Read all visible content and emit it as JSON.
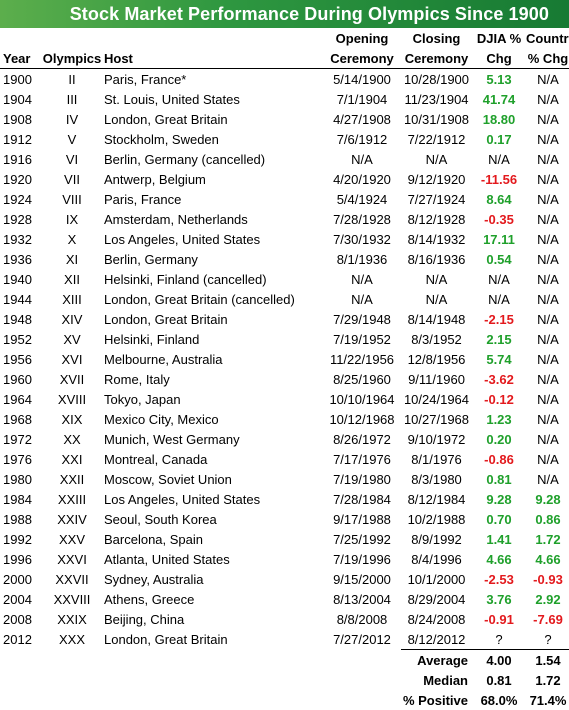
{
  "chart_data": {
    "type": "table",
    "title": "Stock Market Performance During Olympics Since 1900",
    "headers": {
      "row1": [
        "",
        "",
        "",
        "Opening",
        "Closing",
        "DJIA %",
        "Country"
      ],
      "row2": [
        "Year",
        "Olympics",
        "Host",
        "Ceremony",
        "Ceremony",
        "Chg",
        "% Chg"
      ]
    },
    "rows": [
      {
        "year": "1900",
        "olympics": "II",
        "host": "Paris, France*",
        "opening": "5/14/1900",
        "closing": "10/28/1900",
        "djia": "5.13",
        "country": "N/A"
      },
      {
        "year": "1904",
        "olympics": "III",
        "host": "St. Louis, United States",
        "opening": "7/1/1904",
        "closing": "11/23/1904",
        "djia": "41.74",
        "country": "N/A"
      },
      {
        "year": "1908",
        "olympics": "IV",
        "host": "London, Great Britain",
        "opening": "4/27/1908",
        "closing": "10/31/1908",
        "djia": "18.80",
        "country": "N/A"
      },
      {
        "year": "1912",
        "olympics": "V",
        "host": "Stockholm, Sweden",
        "opening": "7/6/1912",
        "closing": "7/22/1912",
        "djia": "0.17",
        "country": "N/A"
      },
      {
        "year": "1916",
        "olympics": "VI",
        "host": "Berlin, Germany (cancelled)",
        "opening": "N/A",
        "closing": "N/A",
        "djia": "N/A",
        "country": "N/A"
      },
      {
        "year": "1920",
        "olympics": "VII",
        "host": "Antwerp, Belgium",
        "opening": "4/20/1920",
        "closing": "9/12/1920",
        "djia": "-11.56",
        "country": "N/A"
      },
      {
        "year": "1924",
        "olympics": "VIII",
        "host": "Paris, France",
        "opening": "5/4/1924",
        "closing": "7/27/1924",
        "djia": "8.64",
        "country": "N/A"
      },
      {
        "year": "1928",
        "olympics": "IX",
        "host": "Amsterdam, Netherlands",
        "opening": "7/28/1928",
        "closing": "8/12/1928",
        "djia": "-0.35",
        "country": "N/A"
      },
      {
        "year": "1932",
        "olympics": "X",
        "host": "Los Angeles, United States",
        "opening": "7/30/1932",
        "closing": "8/14/1932",
        "djia": "17.11",
        "country": "N/A"
      },
      {
        "year": "1936",
        "olympics": "XI",
        "host": "Berlin, Germany",
        "opening": "8/1/1936",
        "closing": "8/16/1936",
        "djia": "0.54",
        "country": "N/A"
      },
      {
        "year": "1940",
        "olympics": "XII",
        "host": "Helsinki, Finland (cancelled)",
        "opening": "N/A",
        "closing": "N/A",
        "djia": "N/A",
        "country": "N/A"
      },
      {
        "year": "1944",
        "olympics": "XIII",
        "host": "London, Great Britain (cancelled)",
        "opening": "N/A",
        "closing": "N/A",
        "djia": "N/A",
        "country": "N/A"
      },
      {
        "year": "1948",
        "olympics": "XIV",
        "host": "London, Great Britain",
        "opening": "7/29/1948",
        "closing": "8/14/1948",
        "djia": "-2.15",
        "country": "N/A"
      },
      {
        "year": "1952",
        "olympics": "XV",
        "host": "Helsinki, Finland",
        "opening": "7/19/1952",
        "closing": "8/3/1952",
        "djia": "2.15",
        "country": "N/A"
      },
      {
        "year": "1956",
        "olympics": "XVI",
        "host": "Melbourne, Australia",
        "opening": "11/22/1956",
        "closing": "12/8/1956",
        "djia": "5.74",
        "country": "N/A"
      },
      {
        "year": "1960",
        "olympics": "XVII",
        "host": "Rome, Italy",
        "opening": "8/25/1960",
        "closing": "9/11/1960",
        "djia": "-3.62",
        "country": "N/A"
      },
      {
        "year": "1964",
        "olympics": "XVIII",
        "host": "Tokyo, Japan",
        "opening": "10/10/1964",
        "closing": "10/24/1964",
        "djia": "-0.12",
        "country": "N/A"
      },
      {
        "year": "1968",
        "olympics": "XIX",
        "host": "Mexico City, Mexico",
        "opening": "10/12/1968",
        "closing": "10/27/1968",
        "djia": "1.23",
        "country": "N/A"
      },
      {
        "year": "1972",
        "olympics": "XX",
        "host": "Munich, West Germany",
        "opening": "8/26/1972",
        "closing": "9/10/1972",
        "djia": "0.20",
        "country": "N/A"
      },
      {
        "year": "1976",
        "olympics": "XXI",
        "host": "Montreal, Canada",
        "opening": "7/17/1976",
        "closing": "8/1/1976",
        "djia": "-0.86",
        "country": "N/A"
      },
      {
        "year": "1980",
        "olympics": "XXII",
        "host": "Moscow, Soviet Union",
        "opening": "7/19/1980",
        "closing": "8/3/1980",
        "djia": "0.81",
        "country": "N/A"
      },
      {
        "year": "1984",
        "olympics": "XXIII",
        "host": "Los Angeles, United States",
        "opening": "7/28/1984",
        "closing": "8/12/1984",
        "djia": "9.28",
        "country": "9.28"
      },
      {
        "year": "1988",
        "olympics": "XXIV",
        "host": "Seoul, South Korea",
        "opening": "9/17/1988",
        "closing": "10/2/1988",
        "djia": "0.70",
        "country": "0.86"
      },
      {
        "year": "1992",
        "olympics": "XXV",
        "host": "Barcelona, Spain",
        "opening": "7/25/1992",
        "closing": "8/9/1992",
        "djia": "1.41",
        "country": "1.72"
      },
      {
        "year": "1996",
        "olympics": "XXVI",
        "host": "Atlanta, United States",
        "opening": "7/19/1996",
        "closing": "8/4/1996",
        "djia": "4.66",
        "country": "4.66"
      },
      {
        "year": "2000",
        "olympics": "XXVII",
        "host": "Sydney, Australia",
        "opening": "9/15/2000",
        "closing": "10/1/2000",
        "djia": "-2.53",
        "country": "-0.93"
      },
      {
        "year": "2004",
        "olympics": "XXVIII",
        "host": "Athens, Greece",
        "opening": "8/13/2004",
        "closing": "8/29/2004",
        "djia": "3.76",
        "country": "2.92"
      },
      {
        "year": "2008",
        "olympics": "XXIX",
        "host": "Beijing, China",
        "opening": "8/8/2008",
        "closing": "8/24/2008",
        "djia": "-0.91",
        "country": "-7.69"
      },
      {
        "year": "2012",
        "olympics": "XXX",
        "host": "London, Great Britain",
        "opening": "7/27/2012",
        "closing": "8/12/2012",
        "djia": "?",
        "country": "?"
      }
    ],
    "summary": [
      {
        "label": "Average",
        "djia": "4.00",
        "country": "1.54"
      },
      {
        "label": "Median",
        "djia": "0.81",
        "country": "1.72"
      },
      {
        "label": "% Positive",
        "djia": "68.0%",
        "country": "71.4%"
      }
    ],
    "colors": {
      "title_bar": "#2e9740",
      "positive": "#1fa02b",
      "negative": "#e3191d"
    }
  }
}
